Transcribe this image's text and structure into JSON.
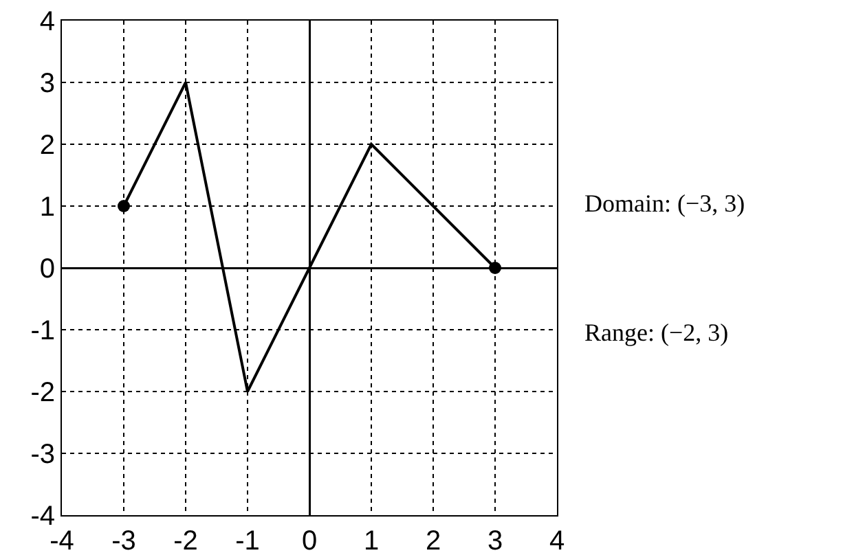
{
  "chart_data": {
    "type": "line",
    "x": [
      -3,
      -2,
      -1,
      0,
      1,
      3
    ],
    "series": [
      {
        "color": "#000000",
        "values": [
          1,
          3,
          -2,
          0,
          2,
          0
        ]
      },
      {
        "type": "scatter",
        "color": "#000000",
        "x": [
          -3,
          3
        ],
        "values": [
          1,
          0
        ],
        "marker": "circle"
      }
    ],
    "xlim": [
      -4,
      4
    ],
    "ylim": [
      -4,
      4
    ],
    "xticks": [
      -4,
      -3,
      -2,
      -1,
      0,
      1,
      2,
      3,
      4
    ],
    "yticks": [
      -4,
      -3,
      -2,
      -1,
      0,
      1,
      2,
      3,
      4
    ],
    "grid": true,
    "line_style": "solid",
    "marker": "none",
    "annotations": [
      "Domain: (−3, 3)",
      "Range: (−2, 3)"
    ]
  }
}
